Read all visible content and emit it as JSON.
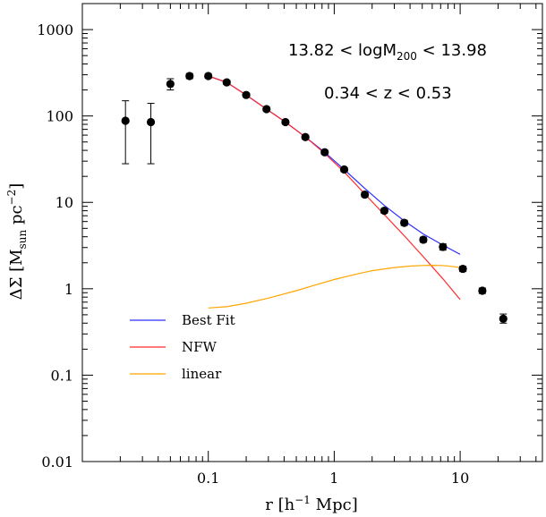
{
  "chart_data": {
    "type": "scatter",
    "xscale": "log",
    "yscale": "log",
    "xlim": [
      0.01,
      45
    ],
    "ylim": [
      0.01,
      2000
    ],
    "xlabel_parts": [
      "r  [h",
      "−1",
      " Mpc]"
    ],
    "ylabel_parts": [
      "ΔΣ  [M",
      "sun",
      "  pc",
      "−2",
      "]"
    ],
    "x_ticks": [
      0.1,
      1,
      10
    ],
    "x_tick_labels": [
      "0.1",
      "1",
      "10"
    ],
    "y_ticks": [
      0.01,
      0.1,
      1,
      10,
      100,
      1000
    ],
    "y_tick_labels": [
      "0.01",
      "0.1",
      "1",
      "10",
      "100",
      "1000"
    ],
    "annotations": {
      "mass_range_parts": [
        "13.82 < logM",
        "200",
        " < 13.98"
      ],
      "z_range": "0.34 < z < 0.53"
    },
    "points": [
      {
        "x": 0.022,
        "y": 88,
        "ylo": 28,
        "yhi": 150
      },
      {
        "x": 0.035,
        "y": 85,
        "ylo": 28,
        "yhi": 140
      },
      {
        "x": 0.05,
        "y": 235,
        "ylo": 200,
        "yhi": 270
      },
      {
        "x": 0.071,
        "y": 290,
        "ylo": 270,
        "yhi": 310
      },
      {
        "x": 0.1,
        "y": 290,
        "ylo": 275,
        "yhi": 305
      },
      {
        "x": 0.14,
        "y": 245,
        "ylo": 232,
        "yhi": 258
      },
      {
        "x": 0.2,
        "y": 175,
        "ylo": 166,
        "yhi": 184
      },
      {
        "x": 0.29,
        "y": 120,
        "ylo": 114,
        "yhi": 126
      },
      {
        "x": 0.41,
        "y": 85,
        "ylo": 81,
        "yhi": 89
      },
      {
        "x": 0.59,
        "y": 57,
        "ylo": 54,
        "yhi": 60
      },
      {
        "x": 0.84,
        "y": 38,
        "ylo": 36,
        "yhi": 40
      },
      {
        "x": 1.2,
        "y": 24,
        "ylo": 22.8,
        "yhi": 25.2
      },
      {
        "x": 1.75,
        "y": 12.3,
        "ylo": 11.6,
        "yhi": 13
      },
      {
        "x": 2.5,
        "y": 8,
        "ylo": 7.5,
        "yhi": 8.5
      },
      {
        "x": 3.6,
        "y": 5.8,
        "ylo": 5.4,
        "yhi": 6.2
      },
      {
        "x": 5.1,
        "y": 3.7,
        "ylo": 3.45,
        "yhi": 3.95
      },
      {
        "x": 7.3,
        "y": 3.05,
        "ylo": 2.8,
        "yhi": 3.3
      },
      {
        "x": 10.5,
        "y": 1.7,
        "ylo": 1.58,
        "yhi": 1.82
      },
      {
        "x": 15,
        "y": 0.95,
        "ylo": 0.88,
        "yhi": 1.02
      },
      {
        "x": 22,
        "y": 0.45,
        "ylo": 0.4,
        "yhi": 0.51
      }
    ],
    "series": [
      {
        "name": "Best Fit",
        "color": "#2f2fff",
        "x": [
          0.1,
          0.14,
          0.2,
          0.29,
          0.41,
          0.59,
          0.84,
          1.2,
          1.75,
          2.5,
          3.6,
          5.1,
          7.3,
          10
        ],
        "y": [
          290,
          245,
          175,
          120,
          85,
          57,
          38,
          24,
          14.5,
          9.2,
          6.1,
          4.3,
          3.2,
          2.5
        ]
      },
      {
        "name": "NFW",
        "color": "#ff2a2a",
        "x": [
          0.1,
          0.14,
          0.2,
          0.29,
          0.41,
          0.59,
          0.84,
          1.2,
          1.75,
          2.5,
          3.6,
          5.1,
          7.3,
          10
        ],
        "y": [
          290,
          245,
          175,
          120,
          85,
          57,
          37,
          22.5,
          12.5,
          7.2,
          4.1,
          2.35,
          1.3,
          0.75
        ]
      },
      {
        "name": "linear",
        "color": "#ffa500",
        "x": [
          0.1,
          0.14,
          0.2,
          0.3,
          0.5,
          0.7,
          1,
          1.5,
          2,
          3,
          4,
          5,
          6,
          7,
          8,
          10
        ],
        "y": [
          0.6,
          0.62,
          0.68,
          0.78,
          0.95,
          1.1,
          1.28,
          1.48,
          1.62,
          1.76,
          1.83,
          1.86,
          1.87,
          1.86,
          1.84,
          1.76
        ]
      }
    ],
    "legend_position": "lower-left"
  }
}
